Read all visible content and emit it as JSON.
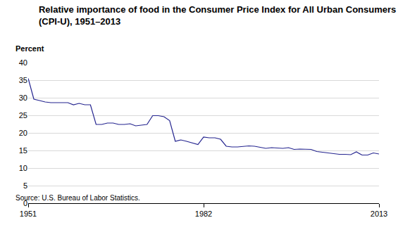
{
  "chart_data": {
    "type": "line",
    "title": [
      "Relative importance of food in the Consumer Price Index for All Urban Consumers",
      "(CPI-U), 1951–2013"
    ],
    "ylabel": "Percent",
    "source": "Source: U.S. Bureau of Labor Statistics.",
    "x": [
      1951,
      1952,
      1953,
      1954,
      1955,
      1956,
      1957,
      1958,
      1959,
      1960,
      1961,
      1962,
      1963,
      1964,
      1965,
      1966,
      1967,
      1968,
      1969,
      1970,
      1971,
      1972,
      1973,
      1974,
      1975,
      1976,
      1977,
      1978,
      1979,
      1980,
      1981,
      1982,
      1983,
      1984,
      1985,
      1986,
      1987,
      1988,
      1989,
      1990,
      1991,
      1992,
      1993,
      1994,
      1995,
      1996,
      1997,
      1998,
      1999,
      2000,
      2001,
      2002,
      2003,
      2004,
      2005,
      2006,
      2007,
      2008,
      2009,
      2010,
      2011,
      2012,
      2013
    ],
    "values": [
      35.5,
      29.6,
      29.2,
      28.8,
      28.6,
      28.6,
      28.6,
      28.6,
      28.0,
      28.4,
      28.0,
      28.0,
      22.4,
      22.4,
      22.8,
      22.8,
      22.4,
      22.4,
      22.6,
      22.0,
      22.2,
      22.4,
      24.9,
      24.9,
      24.6,
      23.5,
      17.6,
      18.0,
      17.6,
      17.2,
      16.7,
      18.8,
      18.6,
      18.6,
      18.2,
      16.2,
      16.0,
      16.0,
      16.1,
      16.3,
      16.2,
      15.9,
      15.6,
      15.8,
      15.7,
      15.6,
      15.8,
      15.3,
      15.4,
      15.3,
      15.3,
      14.7,
      14.5,
      14.4,
      14.2,
      13.9,
      13.9,
      13.8,
      14.6,
      13.7,
      13.7,
      14.3,
      14.0
    ],
    "color": "#24248f",
    "xlim": [
      1951,
      2013
    ],
    "xticks": [
      1951,
      1982,
      2013
    ],
    "ylim": [
      0,
      40
    ],
    "yticks": [
      0,
      5,
      10,
      15,
      20,
      25,
      30,
      35,
      40
    ],
    "grid": true
  }
}
